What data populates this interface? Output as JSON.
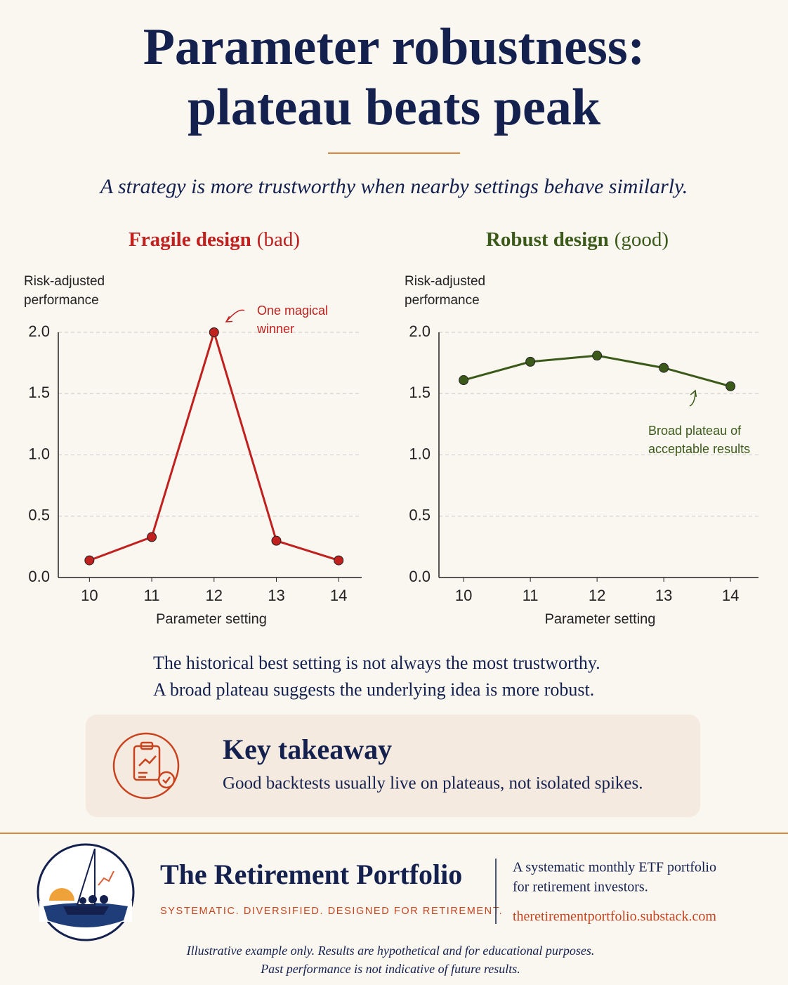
{
  "header": {
    "title": [
      "Parameter robustness:",
      "plateau beats peak"
    ],
    "subtitle": "A strategy is more trustworthy when nearby settings behave similarly."
  },
  "chart_data": [
    {
      "type": "line",
      "title": "Fragile design",
      "title_note": "(bad)",
      "color": "#c0201e",
      "ylabel": [
        "Risk-adjusted",
        "performance"
      ],
      "xlabel": "Parameter setting",
      "x": [
        10,
        11,
        12,
        13,
        14
      ],
      "values": [
        0.14,
        0.33,
        2.0,
        0.3,
        0.14
      ],
      "xlim": [
        9.5,
        14.37
      ],
      "xticks": [
        10,
        11,
        12,
        13,
        14
      ],
      "ylim": [
        0,
        2.0
      ],
      "yticks": [
        {
          "value": 0,
          "label": "0.0"
        },
        0.5,
        {
          "value": 1,
          "label": "1.0"
        },
        1.5,
        {
          "value": 2,
          "label": "2.0"
        }
      ],
      "grid": true,
      "annotation": [
        "One magical",
        "winner"
      ]
    },
    {
      "type": "line",
      "title": "Robust design",
      "title_note": "(good)",
      "color": "#3b5a1a",
      "ylabel": [
        "Risk-adjusted",
        "performance"
      ],
      "xlabel": "Parameter setting",
      "x": [
        10,
        11,
        12,
        13,
        14
      ],
      "values": [
        1.61,
        1.76,
        1.81,
        1.71,
        1.56
      ],
      "xlim": [
        9.63,
        14.42
      ],
      "xticks": [
        10,
        11,
        12,
        13,
        14
      ],
      "ylim": [
        0,
        2.0
      ],
      "yticks": [
        {
          "value": 0,
          "label": "0.0"
        },
        0.5,
        {
          "value": 1,
          "label": "1.0"
        },
        1.5,
        {
          "value": 2,
          "label": "2.0"
        }
      ],
      "grid": true,
      "annotation": [
        "Broad plateau of",
        "acceptable results"
      ]
    }
  ],
  "notes": [
    "The historical best setting is not always the most trustworthy.",
    "A broad plateau suggests the underlying idea is more robust."
  ],
  "takeaway": {
    "title": "Key takeaway",
    "text": "Good backtests usually live on plateaus, not isolated spikes."
  },
  "footer": {
    "brand": "The Retirement Portfolio",
    "tagline": "SYSTEMATIC. DIVERSIFIED. DESIGNED FOR RETIREMENT.",
    "description": [
      "A systematic monthly ETF portfolio",
      "for retirement investors."
    ],
    "url": "theretirementportfolio.substack.com",
    "disclaimer": [
      "Illustrative example only. Results are hypothetical and for educational purposes.",
      "Past performance is not indicative of future results."
    ]
  }
}
